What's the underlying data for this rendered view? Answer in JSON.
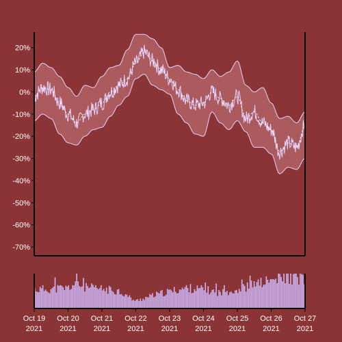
{
  "colors": {
    "background": "#8B3435",
    "band_fill": "#B06264",
    "line": "#E8D4FF",
    "volume": "#CDB6F7",
    "axis": "#000000",
    "text": "#FFFFFF"
  },
  "chart_data": {
    "type": "line",
    "title": "",
    "xlabel": "",
    "ylabel": "",
    "y_unit": "%",
    "ylim": [
      -74,
      27
    ],
    "y_ticks": [
      20,
      10,
      0,
      -10,
      -20,
      -30,
      -40,
      -50,
      -60,
      -70
    ],
    "y_tick_labels": [
      "20%",
      "10%",
      "0%",
      "-10%",
      "-20%",
      "-30%",
      "-40%",
      "-50%",
      "-60%",
      "-70%"
    ],
    "x_range": [
      "2021-10-19",
      "2021-10-27"
    ],
    "x_ticks": [
      {
        "date": "2021-10-19",
        "line1": "Oct 19",
        "line2": "2021"
      },
      {
        "date": "2021-10-20",
        "line1": "Oct 20",
        "line2": "2021"
      },
      {
        "date": "2021-10-21",
        "line1": "Oct 21",
        "line2": "2021"
      },
      {
        "date": "2021-10-22",
        "line1": "Oct 22",
        "line2": "2021"
      },
      {
        "date": "2021-10-23",
        "line1": "Oct 23",
        "line2": "2021"
      },
      {
        "date": "2021-10-24",
        "line1": "Oct 24",
        "line2": "2021"
      },
      {
        "date": "2021-10-25",
        "line1": "Oct 25",
        "line2": "2021"
      },
      {
        "date": "2021-10-26",
        "line1": "Oct 26",
        "line2": "2021"
      },
      {
        "date": "2021-10-27",
        "line1": "Oct 27",
        "line2": "2021"
      }
    ],
    "series": [
      {
        "role": "value",
        "points": [
          [
            "2021-10-19 00:00",
            -2
          ],
          [
            "2021-10-19 06:00",
            2
          ],
          [
            "2021-10-19 12:00",
            1
          ],
          [
            "2021-10-19 18:00",
            -5
          ],
          [
            "2021-10-20 00:00",
            -10
          ],
          [
            "2021-10-20 06:00",
            -14
          ],
          [
            "2021-10-20 12:00",
            -10
          ],
          [
            "2021-10-20 18:00",
            -8
          ],
          [
            "2021-10-21 00:00",
            -5
          ],
          [
            "2021-10-21 06:00",
            0
          ],
          [
            "2021-10-21 12:00",
            3
          ],
          [
            "2021-10-21 18:00",
            6
          ],
          [
            "2021-10-22 00:00",
            13
          ],
          [
            "2021-10-22 06:00",
            18
          ],
          [
            "2021-10-22 12:00",
            14
          ],
          [
            "2021-10-22 18:00",
            10
          ],
          [
            "2021-10-23 00:00",
            6
          ],
          [
            "2021-10-23 06:00",
            1
          ],
          [
            "2021-10-23 12:00",
            -4
          ],
          [
            "2021-10-23 18:00",
            -6
          ],
          [
            "2021-10-24 00:00",
            -5
          ],
          [
            "2021-10-24 06:00",
            0
          ],
          [
            "2021-10-24 12:00",
            -3
          ],
          [
            "2021-10-24 18:00",
            -6
          ],
          [
            "2021-10-25 00:00",
            -2
          ],
          [
            "2021-10-25 06:00",
            -12
          ],
          [
            "2021-10-25 12:00",
            -9
          ],
          [
            "2021-10-25 18:00",
            -14
          ],
          [
            "2021-10-26 00:00",
            -17
          ],
          [
            "2021-10-26 06:00",
            -27
          ],
          [
            "2021-10-26 12:00",
            -23
          ],
          [
            "2021-10-26 18:00",
            -25
          ],
          [
            "2021-10-27 00:00",
            -15
          ]
        ]
      },
      {
        "role": "band",
        "upper": [
          [
            "2021-10-19 00:00",
            9
          ],
          [
            "2021-10-19 06:00",
            13
          ],
          [
            "2021-10-19 12:00",
            11
          ],
          [
            "2021-10-19 18:00",
            7
          ],
          [
            "2021-10-20 00:00",
            2
          ],
          [
            "2021-10-20 06:00",
            -2
          ],
          [
            "2021-10-20 12:00",
            3
          ],
          [
            "2021-10-20 18:00",
            2
          ],
          [
            "2021-10-21 00:00",
            7
          ],
          [
            "2021-10-21 06:00",
            11
          ],
          [
            "2021-10-21 12:00",
            12
          ],
          [
            "2021-10-21 18:00",
            19
          ],
          [
            "2021-10-22 00:00",
            26
          ],
          [
            "2021-10-22 06:00",
            26
          ],
          [
            "2021-10-22 12:00",
            24
          ],
          [
            "2021-10-22 18:00",
            20
          ],
          [
            "2021-10-23 00:00",
            11
          ],
          [
            "2021-10-23 06:00",
            12
          ],
          [
            "2021-10-23 12:00",
            9
          ],
          [
            "2021-10-23 18:00",
            8
          ],
          [
            "2021-10-24 00:00",
            6
          ],
          [
            "2021-10-24 06:00",
            10
          ],
          [
            "2021-10-24 12:00",
            7
          ],
          [
            "2021-10-24 18:00",
            9
          ],
          [
            "2021-10-25 00:00",
            14
          ],
          [
            "2021-10-25 06:00",
            3
          ],
          [
            "2021-10-25 12:00",
            0
          ],
          [
            "2021-10-25 18:00",
            2
          ],
          [
            "2021-10-26 00:00",
            -5
          ],
          [
            "2021-10-26 06:00",
            -12
          ],
          [
            "2021-10-26 12:00",
            -11
          ],
          [
            "2021-10-26 18:00",
            -14
          ],
          [
            "2021-10-27 00:00",
            -9
          ]
        ],
        "lower": [
          [
            "2021-10-19 00:00",
            -13
          ],
          [
            "2021-10-19 06:00",
            -10
          ],
          [
            "2021-10-19 12:00",
            -12
          ],
          [
            "2021-10-19 18:00",
            -19
          ],
          [
            "2021-10-20 00:00",
            -23
          ],
          [
            "2021-10-20 06:00",
            -24
          ],
          [
            "2021-10-20 12:00",
            -20
          ],
          [
            "2021-10-20 18:00",
            -17
          ],
          [
            "2021-10-21 00:00",
            -16
          ],
          [
            "2021-10-21 06:00",
            -11
          ],
          [
            "2021-10-21 12:00",
            -6
          ],
          [
            "2021-10-21 18:00",
            -2
          ],
          [
            "2021-10-22 00:00",
            6
          ],
          [
            "2021-10-22 06:00",
            8
          ],
          [
            "2021-10-22 12:00",
            3
          ],
          [
            "2021-10-22 18:00",
            1
          ],
          [
            "2021-10-23 00:00",
            -1
          ],
          [
            "2021-10-23 06:00",
            -10
          ],
          [
            "2021-10-23 12:00",
            -14
          ],
          [
            "2021-10-23 18:00",
            -19
          ],
          [
            "2021-10-24 00:00",
            -20
          ],
          [
            "2021-10-24 06:00",
            -9
          ],
          [
            "2021-10-24 12:00",
            -14
          ],
          [
            "2021-10-24 18:00",
            -17
          ],
          [
            "2021-10-25 00:00",
            -13
          ],
          [
            "2021-10-25 06:00",
            -18
          ],
          [
            "2021-10-25 12:00",
            -25
          ],
          [
            "2021-10-25 18:00",
            -25
          ],
          [
            "2021-10-26 00:00",
            -28
          ],
          [
            "2021-10-26 06:00",
            -37
          ],
          [
            "2021-10-26 12:00",
            -34
          ],
          [
            "2021-10-26 18:00",
            -35
          ],
          [
            "2021-10-27 00:00",
            -30
          ]
        ]
      },
      {
        "role": "volume",
        "points": [
          [
            "2021-10-19 00:00",
            0.55
          ],
          [
            "2021-10-19 12:00",
            0.58
          ],
          [
            "2021-10-20 00:00",
            0.6
          ],
          [
            "2021-10-20 06:00",
            0.75
          ],
          [
            "2021-10-20 12:00",
            0.62
          ],
          [
            "2021-10-21 00:00",
            0.57
          ],
          [
            "2021-10-21 12:00",
            0.52
          ],
          [
            "2021-10-22 00:00",
            0.22
          ],
          [
            "2021-10-22 12:00",
            0.38
          ],
          [
            "2021-10-23 00:00",
            0.5
          ],
          [
            "2021-10-23 12:00",
            0.6
          ],
          [
            "2021-10-24 00:00",
            0.56
          ],
          [
            "2021-10-24 12:00",
            0.46
          ],
          [
            "2021-10-25 00:00",
            0.55
          ],
          [
            "2021-10-25 12:00",
            0.7
          ],
          [
            "2021-10-26 00:00",
            0.82
          ],
          [
            "2021-10-26 12:00",
            0.92
          ],
          [
            "2021-10-27 00:00",
            0.88
          ]
        ]
      }
    ]
  }
}
